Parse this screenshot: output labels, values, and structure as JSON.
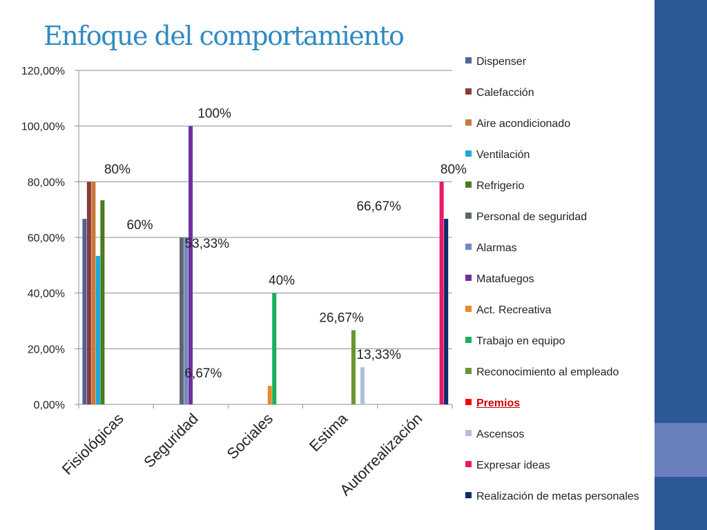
{
  "slide": {
    "title": "Enfoque del comportamiento",
    "title_color": "#2e8bc0",
    "side_colors": [
      "#2c5897",
      "#6a7fbd",
      "#2c5897"
    ]
  },
  "chart_data": {
    "type": "bar",
    "categories": [
      "Fisiológicas",
      "Seguridad",
      "Sociales",
      "Estima",
      "Autorrealización"
    ],
    "ylim": [
      0,
      120
    ],
    "yticks": [
      "0,00%",
      "20,00%",
      "40,00%",
      "60,00%",
      "80,00%",
      "100,00%",
      "120,00%"
    ],
    "grid": true,
    "legend_position": "right",
    "series": [
      {
        "name": "Dispenser",
        "color": "#4f6298",
        "values": [
          66.67,
          0,
          0,
          0,
          0
        ]
      },
      {
        "name": "Calefacción",
        "color": "#8b3a3a",
        "values": [
          80,
          0,
          0,
          0,
          0
        ]
      },
      {
        "name": "Aire acondicionado",
        "color": "#c87838",
        "values": [
          80,
          0,
          0,
          0,
          0
        ]
      },
      {
        "name": "Ventilación",
        "color": "#1ba9d9",
        "values": [
          53.33,
          0,
          0,
          0,
          0
        ]
      },
      {
        "name": "Refrigerio",
        "color": "#4a7a1f",
        "values": [
          73.33,
          0,
          0,
          0,
          0
        ]
      },
      {
        "name": "Personal de seguridad",
        "color": "#5a6770",
        "values": [
          0,
          60,
          0,
          0,
          0
        ]
      },
      {
        "name": "Alarmas",
        "color": "#7388c0",
        "values": [
          0,
          60,
          0,
          0,
          0
        ]
      },
      {
        "name": "Matafuegos",
        "color": "#7030a0",
        "values": [
          0,
          100,
          0,
          0,
          0
        ]
      },
      {
        "name": "Act. Recreativa",
        "color": "#e88a2e",
        "values": [
          0,
          0,
          6.67,
          0,
          0
        ]
      },
      {
        "name": "Trabajo en equipo",
        "color": "#1aae5a",
        "values": [
          0,
          0,
          40,
          0,
          0
        ]
      },
      {
        "name": "Reconocimiento  al empleado",
        "color": "#6a9630",
        "values": [
          0,
          0,
          0,
          26.67,
          0
        ]
      },
      {
        "name": "Premios",
        "color": "#ff0000",
        "values": [
          0,
          0,
          0,
          0,
          0
        ],
        "highlight": true
      },
      {
        "name": "Ascensos",
        "color": "#b3bfd9",
        "values": [
          0,
          0,
          0,
          13.33,
          0
        ]
      },
      {
        "name": "Expresar ideas",
        "color": "#e8196a",
        "values": [
          0,
          0,
          0,
          0,
          80
        ]
      },
      {
        "name": "Realización de metas personales",
        "color": "#0f2b6a",
        "values": [
          0,
          0,
          0,
          0,
          66.67
        ]
      }
    ],
    "annotations": [
      {
        "text": "80%",
        "value": 80,
        "category": 0,
        "offset": 0
      },
      {
        "text": "53,33%",
        "value": 53.33,
        "category": 0,
        "offset": 1.2
      },
      {
        "text": "100%",
        "value": 100,
        "category": 1,
        "offset": 0.3
      },
      {
        "text": "60%",
        "value": 60,
        "category": 1,
        "offset": -0.7
      },
      {
        "text": "40%",
        "value": 40,
        "category": 2,
        "offset": 0.2
      },
      {
        "text": "6,67%",
        "value": 6.67,
        "category": 2,
        "offset": -0.85
      },
      {
        "text": "26,67%",
        "value": 26.67,
        "category": 3,
        "offset": 0
      },
      {
        "text": "13,33%",
        "value": 13.33,
        "category": 3,
        "offset": 0.5
      },
      {
        "text": "80%",
        "value": 80,
        "category": 4,
        "offset": 0.5
      },
      {
        "text": "66,67%",
        "value": 66.67,
        "category": 4,
        "offset": -0.5
      }
    ]
  }
}
